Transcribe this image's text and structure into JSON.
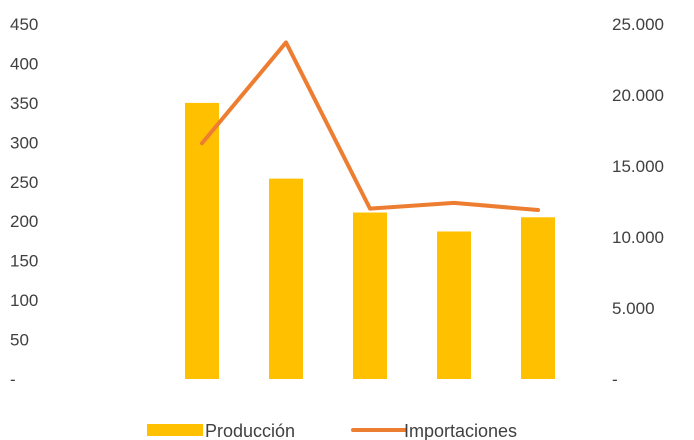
{
  "chart_data": {
    "type": "bar",
    "categories": [
      "",
      "",
      "",
      "",
      ""
    ],
    "title": "",
    "xlabel": "",
    "ylabel": "",
    "y_left": {
      "lim": [
        0,
        450
      ],
      "ticks": [
        {
          "value": 0,
          "label": "-"
        },
        {
          "value": 50,
          "label": "50"
        },
        {
          "value": 100,
          "label": "100"
        },
        {
          "value": 150,
          "label": "150"
        },
        {
          "value": 200,
          "label": "200"
        },
        {
          "value": 250,
          "label": "250"
        },
        {
          "value": 300,
          "label": "300"
        },
        {
          "value": 350,
          "label": "350"
        },
        {
          "value": 400,
          "label": "400"
        },
        {
          "value": 450,
          "label": "450"
        }
      ]
    },
    "y_right": {
      "lim": [
        0,
        25000
      ],
      "ticks": [
        {
          "value": 0,
          "label": "-"
        },
        {
          "value": 5000,
          "label": "5.000"
        },
        {
          "value": 10000,
          "label": "10.000"
        },
        {
          "value": 15000,
          "label": "15.000"
        },
        {
          "value": 20000,
          "label": "20.000"
        },
        {
          "value": 25000,
          "label": "25.000"
        }
      ]
    },
    "series": [
      {
        "name": "Producción",
        "type": "bar",
        "axis": "left",
        "color": "#FFC000",
        "values": [
          350,
          254,
          211,
          187,
          205
        ]
      },
      {
        "name": "Importaciones",
        "type": "line",
        "axis": "right",
        "color": "#ED7D31",
        "values": [
          16600,
          23700,
          12000,
          12400,
          11900
        ]
      }
    ],
    "grid": false,
    "legend": "bottom"
  }
}
